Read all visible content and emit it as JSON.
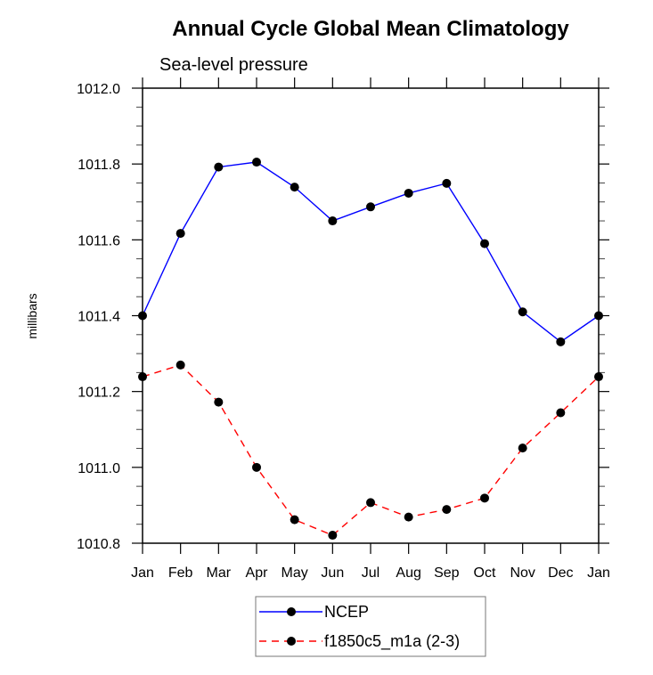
{
  "chart_data": {
    "type": "line",
    "title": "Annual Cycle Global Mean Climatology",
    "subtitle": "Sea-level pressure",
    "xlabel": "",
    "ylabel": "millibars",
    "categories": [
      "Jan",
      "Feb",
      "Mar",
      "Apr",
      "May",
      "Jun",
      "Jul",
      "Aug",
      "Sep",
      "Oct",
      "Nov",
      "Dec",
      "Jan"
    ],
    "ylim": [
      1010.8,
      1012.0
    ],
    "yticks": [
      1010.8,
      1011.0,
      1011.2,
      1011.4,
      1011.6,
      1011.8,
      1012.0
    ],
    "ytick_labels": [
      "1010.8",
      "1011.0",
      "1011.2",
      "1011.4",
      "1011.6",
      "1011.8",
      "1012.0"
    ],
    "yminor_step": 0.05,
    "grid": false,
    "legend_position": "bottom-center",
    "series": [
      {
        "name": "NCEP",
        "color": "#0000ff",
        "line_style": "solid",
        "marker": "filled-circle",
        "values": [
          1011.4,
          1011.617,
          1011.792,
          1011.805,
          1011.739,
          1011.65,
          1011.687,
          1011.723,
          1011.749,
          1011.59,
          1011.41,
          1011.331,
          1011.4
        ]
      },
      {
        "name": "f1850c5_m1a (2-3)",
        "color": "#ff0000",
        "line_style": "dashed",
        "marker": "filled-circle",
        "values": [
          1011.239,
          1011.27,
          1011.172,
          1011.0,
          1010.862,
          1010.821,
          1010.907,
          1010.869,
          1010.889,
          1010.919,
          1011.051,
          1011.144,
          1011.239
        ]
      }
    ]
  }
}
